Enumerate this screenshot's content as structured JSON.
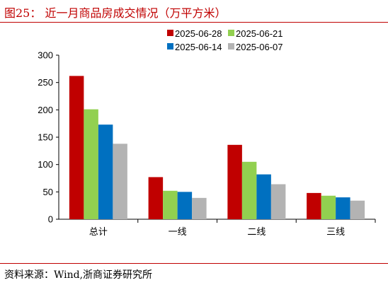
{
  "header": {
    "title": "图25：  近一月商品房成交情况（万平方米）"
  },
  "footer": {
    "source": "资料来源：Wind,浙商证券研究所"
  },
  "chart_data": {
    "type": "bar",
    "categories": [
      "总计",
      "一线",
      "二线",
      "三线"
    ],
    "series": [
      {
        "name": "2025-06-28",
        "color": "#c00000",
        "values": [
          262,
          77,
          136,
          48
        ]
      },
      {
        "name": "2025-06-21",
        "color": "#92d050",
        "values": [
          201,
          52,
          105,
          43
        ]
      },
      {
        "name": "2025-06-14",
        "color": "#0070c0",
        "values": [
          173,
          50,
          82,
          40
        ]
      },
      {
        "name": "2025-06-07",
        "color": "#b3b3b3",
        "values": [
          138,
          39,
          64,
          34
        ]
      }
    ],
    "ylim": [
      0,
      300
    ],
    "yticks": [
      "0",
      "50",
      "100",
      "150",
      "200",
      "250",
      "300"
    ],
    "legend_position": "top-right",
    "grid": false
  }
}
